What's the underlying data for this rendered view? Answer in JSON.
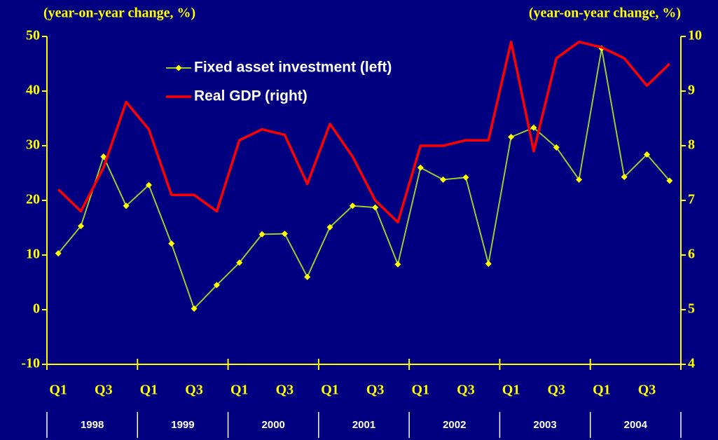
{
  "chart_data": {
    "type": "line",
    "ylabel": "(year-on-year change, %)",
    "y2label": "(year-on-year change, %)",
    "categories": [
      "Q1",
      null,
      "Q3",
      null,
      "Q1",
      null,
      "Q3",
      null,
      "Q1",
      null,
      "Q3",
      null,
      "Q1",
      null,
      "Q3",
      null,
      "Q1",
      null,
      "Q3",
      null,
      "Q1",
      null,
      "Q3",
      null,
      "Q1",
      null,
      "Q3",
      null
    ],
    "years": [
      "1998",
      "1999",
      "2000",
      "2001",
      "2002",
      "2003",
      "2004"
    ],
    "series": [
      {
        "name": "Fixed asset investment (left)",
        "color": "#99cc33",
        "marker_color": "#ffff00",
        "marker": "diamond",
        "axis": "y",
        "values": [
          10.3,
          15.3,
          28,
          19,
          22.8,
          12.1,
          0.2,
          4.5,
          8.6,
          13.8,
          13.9,
          6,
          15.1,
          19,
          18.7,
          8.3,
          26,
          23.8,
          24.2,
          8.4,
          31.6,
          33.3,
          29.7,
          23.8,
          47.8,
          24.3,
          28.4,
          23.6
        ]
      },
      {
        "name": "Real GDP (right)",
        "color": "#ff0000",
        "axis": "y2",
        "values": [
          7.2,
          6.8,
          7.6,
          8.8,
          8.3,
          7.1,
          7.1,
          6.8,
          8.1,
          8.3,
          8.2,
          7.3,
          8.4,
          7.8,
          7.0,
          6.6,
          8.0,
          8.0,
          8.1,
          8.1,
          9.9,
          7.9,
          9.6,
          9.9,
          9.8,
          9.6,
          9.1,
          9.5
        ]
      }
    ],
    "ylim": [
      -10,
      50
    ],
    "yticks": [
      -10,
      0,
      10,
      20,
      30,
      40,
      50
    ],
    "y2lim": [
      4,
      10
    ],
    "y2ticks": [
      4,
      5,
      6,
      7,
      8,
      9,
      10
    ],
    "legend": "upper left",
    "grid": false
  }
}
